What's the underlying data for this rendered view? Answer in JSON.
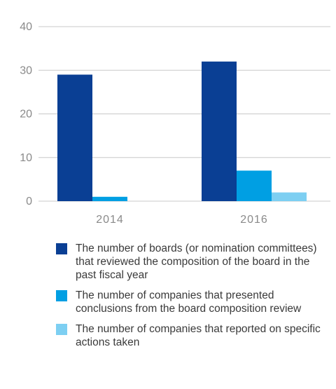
{
  "chart_data": {
    "type": "bar",
    "categories": [
      "2014",
      "2016"
    ],
    "series": [
      {
        "name": "The number of boards (or nomination committees) that reviewed the composition of the board in the past fiscal year",
        "values": [
          29,
          32
        ],
        "color": "#0a3f94"
      },
      {
        "name": "The number of companies that presented conclusions from the board composition review",
        "values": [
          1,
          7
        ],
        "color": "#009fe3"
      },
      {
        "name": "The number of companies that reported on specific actions taken",
        "values": [
          0,
          2
        ],
        "color": "#7dcff2"
      }
    ],
    "ylim": [
      0,
      40
    ],
    "yticks": [
      0,
      10,
      20,
      30,
      40
    ],
    "grid": true,
    "legend_position": "bottom"
  }
}
